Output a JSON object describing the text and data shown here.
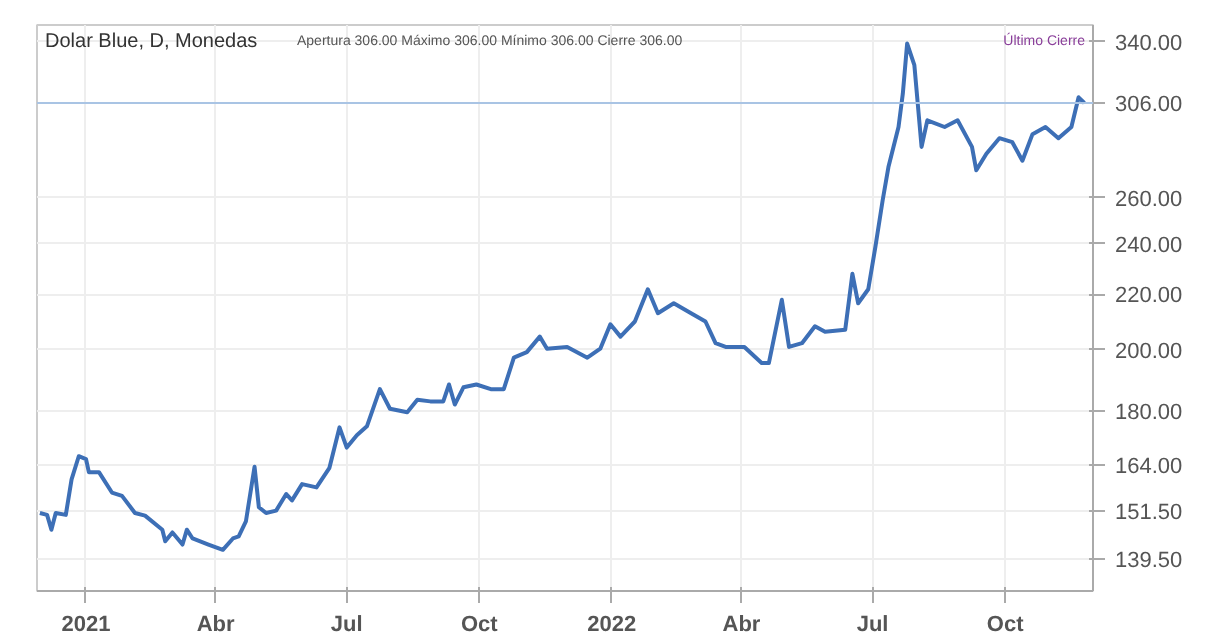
{
  "chart_data": {
    "type": "line",
    "title": "Dolar Blue, D, Monedas",
    "annotations": [
      "Apertura 306.00 Máximo 306.00 Mínimo 306.00 Cierre 306.00",
      "Último Cierre"
    ],
    "log": true,
    "grid": true,
    "xlim": [
      "2020-11-28",
      "2022-12-01"
    ],
    "xticks": [
      {
        "value": "2021-01-01",
        "label": "2021"
      },
      {
        "value": "2021-04-01",
        "label": "Abr"
      },
      {
        "value": "2021-07-01",
        "label": "Jul"
      },
      {
        "value": "2021-10-01",
        "label": "Oct"
      },
      {
        "value": "2022-01-01",
        "label": "2022"
      },
      {
        "value": "2022-04-01",
        "label": "Abr"
      },
      {
        "value": "2022-07-01",
        "label": "Jul"
      },
      {
        "value": "2022-10-01",
        "label": "Oct"
      }
    ],
    "ylim": [
      132,
      350
    ],
    "yticks": [
      {
        "value": 139.5,
        "label": "139.50"
      },
      {
        "value": 151.5,
        "label": "151.50"
      },
      {
        "value": 164,
        "label": "164.00"
      },
      {
        "value": 180,
        "label": "180.00"
      },
      {
        "value": 200,
        "label": "200.00"
      },
      {
        "value": 220,
        "label": "220.00"
      },
      {
        "value": 240,
        "label": "240.00"
      },
      {
        "value": 260,
        "label": "260.00"
      },
      {
        "value": 340,
        "label": "340.00"
      }
    ],
    "ref_lines": [
      {
        "axis": "y",
        "value": 306,
        "label": "306.00",
        "color": "#a9c4e4"
      }
    ],
    "series": [
      {
        "color": "#3d6fb6",
        "x": [
          "2020-11-30",
          "2020-12-05",
          "2020-12-08",
          "2020-12-11",
          "2020-12-18",
          "2020-12-22",
          "2020-12-27",
          "2021-01-01",
          "2021-01-03",
          "2021-01-10",
          "2021-01-19",
          "2021-01-26",
          "2021-02-04",
          "2021-02-11",
          "2021-02-23",
          "2021-02-25",
          "2021-03-02",
          "2021-03-09",
          "2021-03-12",
          "2021-03-16",
          "2021-03-27",
          "2021-04-06",
          "2021-04-13",
          "2021-04-17",
          "2021-04-22",
          "2021-04-28",
          "2021-05-01",
          "2021-05-06",
          "2021-05-13",
          "2021-05-20",
          "2021-05-24",
          "2021-05-31",
          "2021-06-10",
          "2021-06-19",
          "2021-06-26",
          "2021-07-01",
          "2021-07-08",
          "2021-07-15",
          "2021-07-24",
          "2021-07-31",
          "2021-08-12",
          "2021-08-19",
          "2021-08-28",
          "2021-09-06",
          "2021-09-10",
          "2021-09-14",
          "2021-09-20",
          "2021-09-29",
          "2021-10-09",
          "2021-10-18",
          "2021-10-25",
          "2021-11-03",
          "2021-11-12",
          "2021-11-17",
          "2021-12-01",
          "2021-12-15",
          "2021-12-24",
          "2021-12-31",
          "2022-01-07",
          "2022-01-17",
          "2022-01-26",
          "2022-02-02",
          "2022-02-13",
          "2022-02-25",
          "2022-03-07",
          "2022-03-14",
          "2022-03-21",
          "2022-04-03",
          "2022-04-15",
          "2022-04-20",
          "2022-04-29",
          "2022-05-04",
          "2022-05-13",
          "2022-05-22",
          "2022-05-29",
          "2022-06-12",
          "2022-06-17",
          "2022-06-21",
          "2022-06-28",
          "2022-07-03",
          "2022-07-08",
          "2022-07-12",
          "2022-07-19",
          "2022-07-22",
          "2022-07-25",
          "2022-07-30",
          "2022-08-04",
          "2022-08-08",
          "2022-08-20",
          "2022-08-29",
          "2022-09-08",
          "2022-09-11",
          "2022-09-18",
          "2022-09-27",
          "2022-10-06",
          "2022-10-13",
          "2022-10-20",
          "2022-10-29",
          "2022-11-07",
          "2022-11-16",
          "2022-11-21",
          "2022-11-25"
        ],
        "values": [
          151,
          150.5,
          146.7,
          151,
          150.5,
          160,
          166.5,
          165.7,
          162,
          162,
          156.4,
          155.5,
          151,
          150.3,
          146.7,
          143.8,
          146,
          143,
          146.7,
          144.5,
          143,
          141.7,
          144.5,
          145,
          148.8,
          163.5,
          152.5,
          151,
          151.6,
          156,
          154.3,
          158.7,
          157.8,
          163.2,
          175,
          169,
          172.6,
          175.3,
          186.9,
          180.7,
          179.6,
          183.5,
          183,
          183,
          188.4,
          182,
          187.5,
          188.4,
          186.9,
          186.9,
          197.3,
          199.2,
          204.6,
          200.4,
          201,
          197.3,
          200.4,
          209,
          204.6,
          210,
          222,
          213,
          216.7,
          213,
          210,
          202.3,
          201,
          201,
          195.5,
          195.5,
          218,
          201,
          202.3,
          208.3,
          206.3,
          207,
          228,
          216.7,
          222,
          239,
          258.8,
          274,
          293.6,
          311,
          339,
          326.6,
          283.7,
          297,
          293.6,
          297,
          283.7,
          272.5,
          280.4,
          288,
          286,
          277,
          290,
          293.6,
          288,
          293.6,
          309,
          306
        ]
      }
    ]
  }
}
